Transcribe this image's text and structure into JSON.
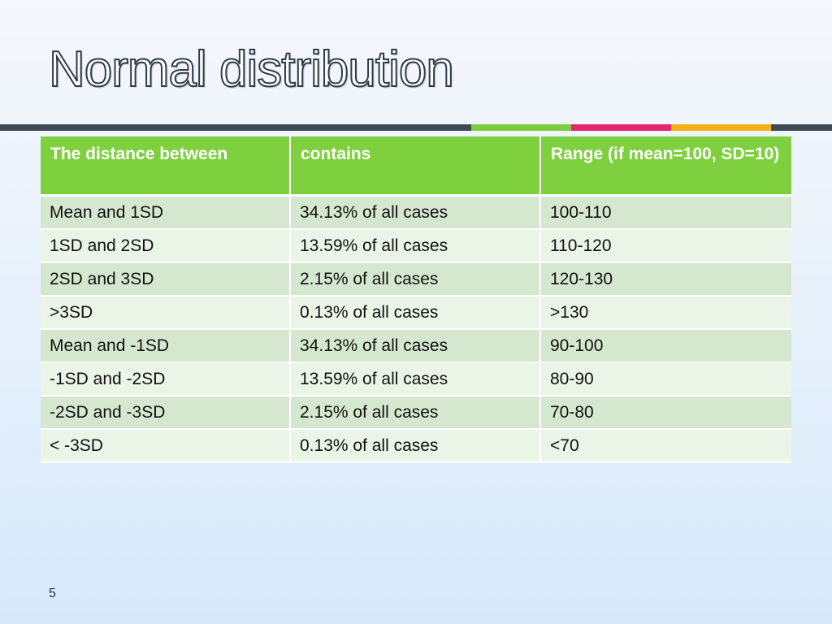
{
  "slide": {
    "title": "Normal distribution",
    "page_number": "5"
  },
  "colors": {
    "accent_green": "#7ed03f",
    "accent_pink": "#e3266d",
    "accent_orange": "#f5b017",
    "rule_dark": "#3f4a57"
  },
  "table": {
    "headers": [
      "The distance between",
      "contains",
      "Range (if mean=100, SD=10)"
    ],
    "rows": [
      [
        "Mean and 1SD",
        "34.13% of all cases",
        "100-110"
      ],
      [
        "1SD and 2SD",
        "13.59% of all cases",
        "110-120"
      ],
      [
        "2SD and 3SD",
        "2.15% of all cases",
        "120-130"
      ],
      [
        ">3SD",
        "0.13% of all cases",
        ">130"
      ],
      [
        "Mean and -1SD",
        "34.13% of all cases",
        "90-100"
      ],
      [
        "-1SD and -2SD",
        "13.59% of all cases",
        "80-90"
      ],
      [
        "-2SD and -3SD",
        "2.15% of all cases",
        "70-80"
      ],
      [
        "< -3SD",
        "0.13% of all cases",
        "<70"
      ]
    ]
  }
}
